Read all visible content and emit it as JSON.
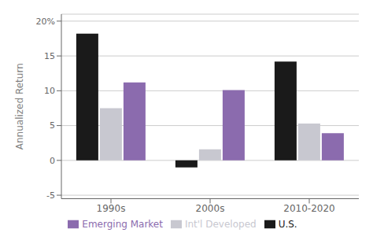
{
  "chart_data": {
    "type": "bar",
    "categories": [
      "1990s",
      "2000s",
      "2010-2020"
    ],
    "series": [
      {
        "name": "U.S.",
        "color": "#1a1a1a",
        "values": [
          18.2,
          -1.0,
          14.2
        ]
      },
      {
        "name": "Int'l Developed",
        "color": "#c8c8d0",
        "values": [
          7.5,
          1.6,
          5.3
        ]
      },
      {
        "name": "Emerging Market",
        "color": "#8b6bae",
        "values": [
          11.2,
          10.1,
          3.9
        ]
      }
    ],
    "ylabel": "Annualized Return",
    "ylim": [
      -5.5,
      21
    ],
    "yticks": [
      -5,
      0,
      5,
      10,
      15,
      {
        "value": 20,
        "label": "20%"
      }
    ],
    "grid": true,
    "legend": "bottom"
  }
}
